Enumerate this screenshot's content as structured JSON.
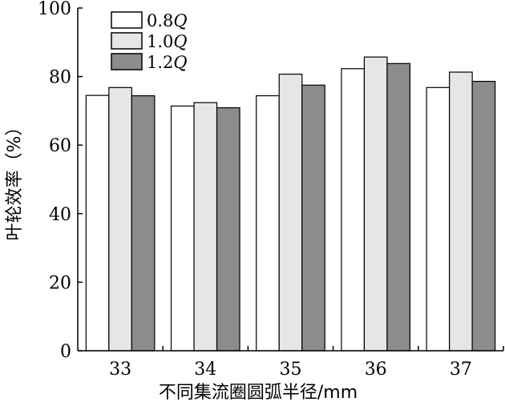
{
  "chart_data": {
    "type": "bar",
    "categories": [
      "33",
      "34",
      "35",
      "36",
      "37"
    ],
    "series": [
      {
        "name": "0.8Q",
        "name_num": "0.8",
        "name_sym": "Q",
        "color": "#ffffff",
        "values": [
          74.5,
          71.4,
          74.4,
          82.3,
          76.8
        ]
      },
      {
        "name": "1.0Q",
        "name_num": "1.0",
        "name_sym": "Q",
        "color": "#e6e6e6",
        "values": [
          76.8,
          72.4,
          80.7,
          85.7,
          81.3
        ]
      },
      {
        "name": "1.2Q",
        "name_num": "1.2",
        "name_sym": "Q",
        "color": "#8c8c8c",
        "values": [
          74.4,
          70.9,
          77.5,
          83.8,
          78.6
        ]
      }
    ],
    "xlabel": "不同集流圈圆弧半径/mm",
    "ylabel": "叶轮效率（%）",
    "ylim": [
      0,
      100
    ],
    "yticks": [
      0,
      20,
      40,
      60,
      80,
      100
    ],
    "grid": false,
    "legend": "top-left"
  }
}
